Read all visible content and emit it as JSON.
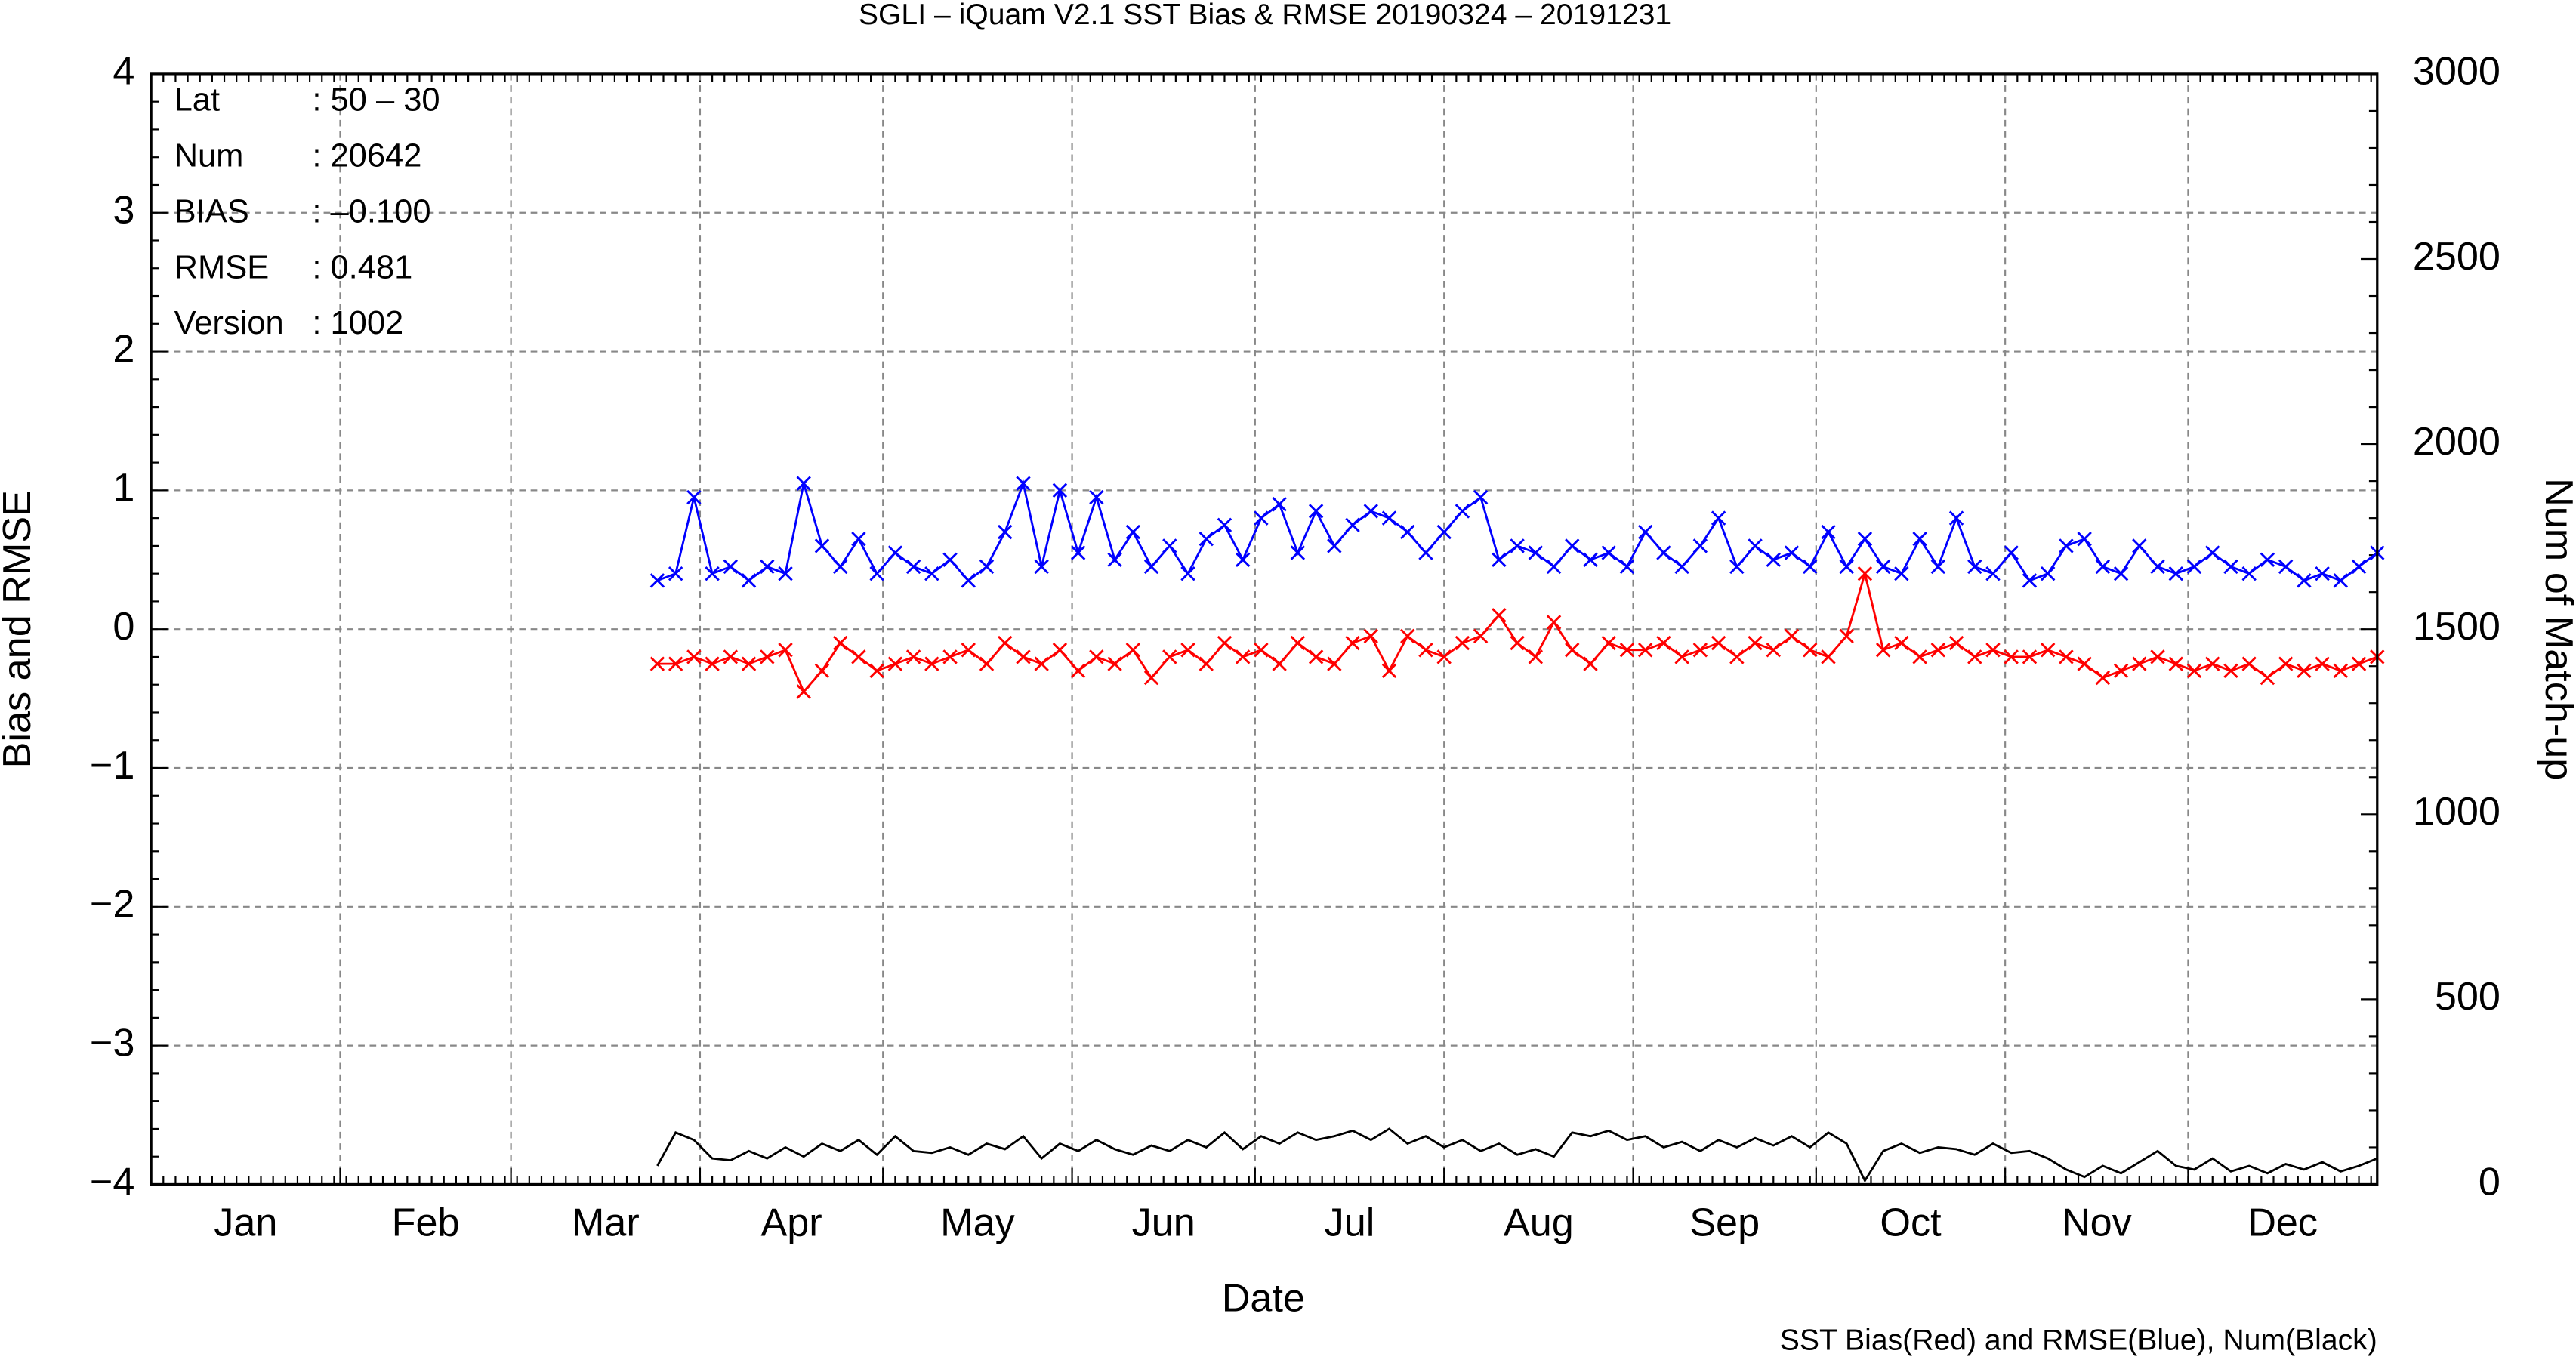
{
  "chart_data": {
    "type": "line",
    "title": "SGLI – iQuam V2.1 SST Bias & RMSE 20190324 – 20191231",
    "x_label": "Date",
    "y_label": "Bias and RMSE",
    "y2_label": "Num of Match-up",
    "footnote": "SST Bias(Red) and RMSE(Blue), Num(Black)",
    "info_box": [
      [
        "Lat",
        ": 50 – 30"
      ],
      [
        "Num",
        ": 20642"
      ],
      [
        "BIAS",
        ": –0.100"
      ],
      [
        "RMSE",
        ": 0.481"
      ],
      [
        "Version",
        ": 1002"
      ]
    ],
    "xlim": [
      0,
      365
    ],
    "xticks": [
      {
        "value": 0,
        "label": "Jan"
      },
      {
        "value": 31,
        "label": "Feb"
      },
      {
        "value": 59,
        "label": "Mar"
      },
      {
        "value": 90,
        "label": "Apr"
      },
      {
        "value": 120,
        "label": "May"
      },
      {
        "value": 151,
        "label": "Jun"
      },
      {
        "value": 181,
        "label": "Jul"
      },
      {
        "value": 212,
        "label": "Aug"
      },
      {
        "value": 243,
        "label": "Sep"
      },
      {
        "value": 273,
        "label": "Oct"
      },
      {
        "value": 304,
        "label": "Nov"
      },
      {
        "value": 334,
        "label": "Dec"
      }
    ],
    "ylim": [
      -4,
      4
    ],
    "yticks": [
      {
        "value": -4,
        "label": "−4"
      },
      {
        "value": -3,
        "label": "−3"
      },
      {
        "value": -2,
        "label": "−2"
      },
      {
        "value": -1,
        "label": "−1"
      },
      0,
      1,
      2,
      3,
      4
    ],
    "y2lim": [
      0,
      3000
    ],
    "y2ticks": [
      0,
      500,
      1000,
      1500,
      2000,
      2500,
      3000
    ],
    "grid": true,
    "x": [
      83,
      86,
      89,
      92,
      95,
      98,
      101,
      104,
      107,
      110,
      113,
      116,
      119,
      122,
      125,
      128,
      131,
      134,
      137,
      140,
      143,
      146,
      149,
      152,
      155,
      158,
      161,
      164,
      167,
      170,
      173,
      176,
      179,
      182,
      185,
      188,
      191,
      194,
      197,
      200,
      203,
      206,
      209,
      212,
      215,
      218,
      221,
      224,
      227,
      230,
      233,
      236,
      239,
      242,
      245,
      248,
      251,
      254,
      257,
      260,
      263,
      266,
      269,
      272,
      275,
      278,
      281,
      284,
      287,
      290,
      293,
      296,
      299,
      302,
      305,
      308,
      311,
      314,
      317,
      320,
      323,
      326,
      329,
      332,
      335,
      338,
      341,
      344,
      347,
      350,
      353,
      356,
      359,
      362,
      365
    ],
    "series": [
      {
        "name": "RMSE",
        "color": "#0000ff",
        "markers": true,
        "values": [
          0.35,
          0.4,
          0.95,
          0.4,
          0.45,
          0.35,
          0.45,
          0.4,
          1.05,
          0.6,
          0.45,
          0.65,
          0.4,
          0.55,
          0.45,
          0.4,
          0.5,
          0.35,
          0.45,
          0.7,
          1.05,
          0.45,
          1.0,
          0.55,
          0.95,
          0.5,
          0.7,
          0.45,
          0.6,
          0.4,
          0.65,
          0.75,
          0.5,
          0.8,
          0.9,
          0.55,
          0.85,
          0.6,
          0.75,
          0.85,
          0.8,
          0.7,
          0.55,
          0.7,
          0.85,
          0.95,
          0.5,
          0.6,
          0.55,
          0.45,
          0.6,
          0.5,
          0.55,
          0.45,
          0.7,
          0.55,
          0.45,
          0.6,
          0.8,
          0.45,
          0.6,
          0.5,
          0.55,
          0.45,
          0.7,
          0.45,
          0.65,
          0.45,
          0.4,
          0.65,
          0.45,
          0.8,
          0.45,
          0.4,
          0.55,
          0.35,
          0.4,
          0.6,
          0.65,
          0.45,
          0.4,
          0.6,
          0.45,
          0.4,
          0.45,
          0.55,
          0.45,
          0.4,
          0.5,
          0.45,
          0.35,
          0.4,
          0.35,
          0.45,
          0.55
        ]
      },
      {
        "name": "Bias",
        "color": "#ff0000",
        "markers": true,
        "values": [
          -0.25,
          -0.25,
          -0.2,
          -0.25,
          -0.2,
          -0.25,
          -0.2,
          -0.15,
          -0.45,
          -0.3,
          -0.1,
          -0.2,
          -0.3,
          -0.25,
          -0.2,
          -0.25,
          -0.2,
          -0.15,
          -0.25,
          -0.1,
          -0.2,
          -0.25,
          -0.15,
          -0.3,
          -0.2,
          -0.25,
          -0.15,
          -0.35,
          -0.2,
          -0.15,
          -0.25,
          -0.1,
          -0.2,
          -0.15,
          -0.25,
          -0.1,
          -0.2,
          -0.25,
          -0.1,
          -0.05,
          -0.3,
          -0.05,
          -0.15,
          -0.2,
          -0.1,
          -0.05,
          0.1,
          -0.1,
          -0.2,
          0.05,
          -0.15,
          -0.25,
          -0.1,
          -0.15,
          -0.15,
          -0.1,
          -0.2,
          -0.15,
          -0.1,
          -0.2,
          -0.1,
          -0.15,
          -0.05,
          -0.15,
          -0.2,
          -0.05,
          0.4,
          -0.15,
          -0.1,
          -0.2,
          -0.15,
          -0.1,
          -0.2,
          -0.15,
          -0.2,
          -0.2,
          -0.15,
          -0.2,
          -0.25,
          -0.35,
          -0.3,
          -0.25,
          -0.2,
          -0.25,
          -0.3,
          -0.25,
          -0.3,
          -0.25,
          -0.35,
          -0.25,
          -0.3,
          -0.25,
          -0.3,
          -0.25,
          -0.2
        ]
      },
      {
        "name": "Num",
        "color": "#000000",
        "markers": false,
        "axis": "y2",
        "values": [
          50,
          140,
          120,
          70,
          65,
          90,
          70,
          100,
          75,
          110,
          90,
          120,
          80,
          130,
          90,
          85,
          100,
          80,
          110,
          95,
          130,
          70,
          110,
          90,
          120,
          95,
          80,
          105,
          90,
          120,
          100,
          140,
          95,
          130,
          110,
          140,
          120,
          130,
          145,
          120,
          150,
          110,
          130,
          100,
          120,
          90,
          110,
          80,
          95,
          75,
          140,
          130,
          145,
          120,
          130,
          100,
          115,
          90,
          120,
          100,
          125,
          105,
          130,
          100,
          140,
          110,
          10,
          90,
          110,
          85,
          100,
          95,
          80,
          110,
          85,
          90,
          70,
          40,
          20,
          50,
          30,
          60,
          90,
          50,
          40,
          70,
          35,
          50,
          30,
          55,
          40,
          60,
          35,
          50,
          70
        ]
      }
    ]
  }
}
